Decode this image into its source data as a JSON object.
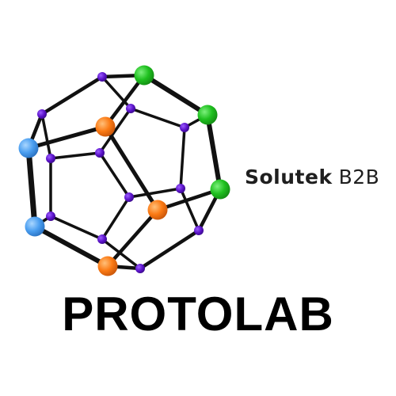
{
  "brand": {
    "name": "Solutek",
    "suffix": "B2B"
  },
  "title": "PROTOLAB",
  "colors": {
    "edge": "#111111",
    "small_node": "#5a12c8",
    "node_green": "#1fc01f",
    "node_orange": "#fb7a14",
    "node_blue": "#4a9ef0",
    "text": "#000000"
  },
  "logo_icon": "dodecahedron-molecule-icon"
}
